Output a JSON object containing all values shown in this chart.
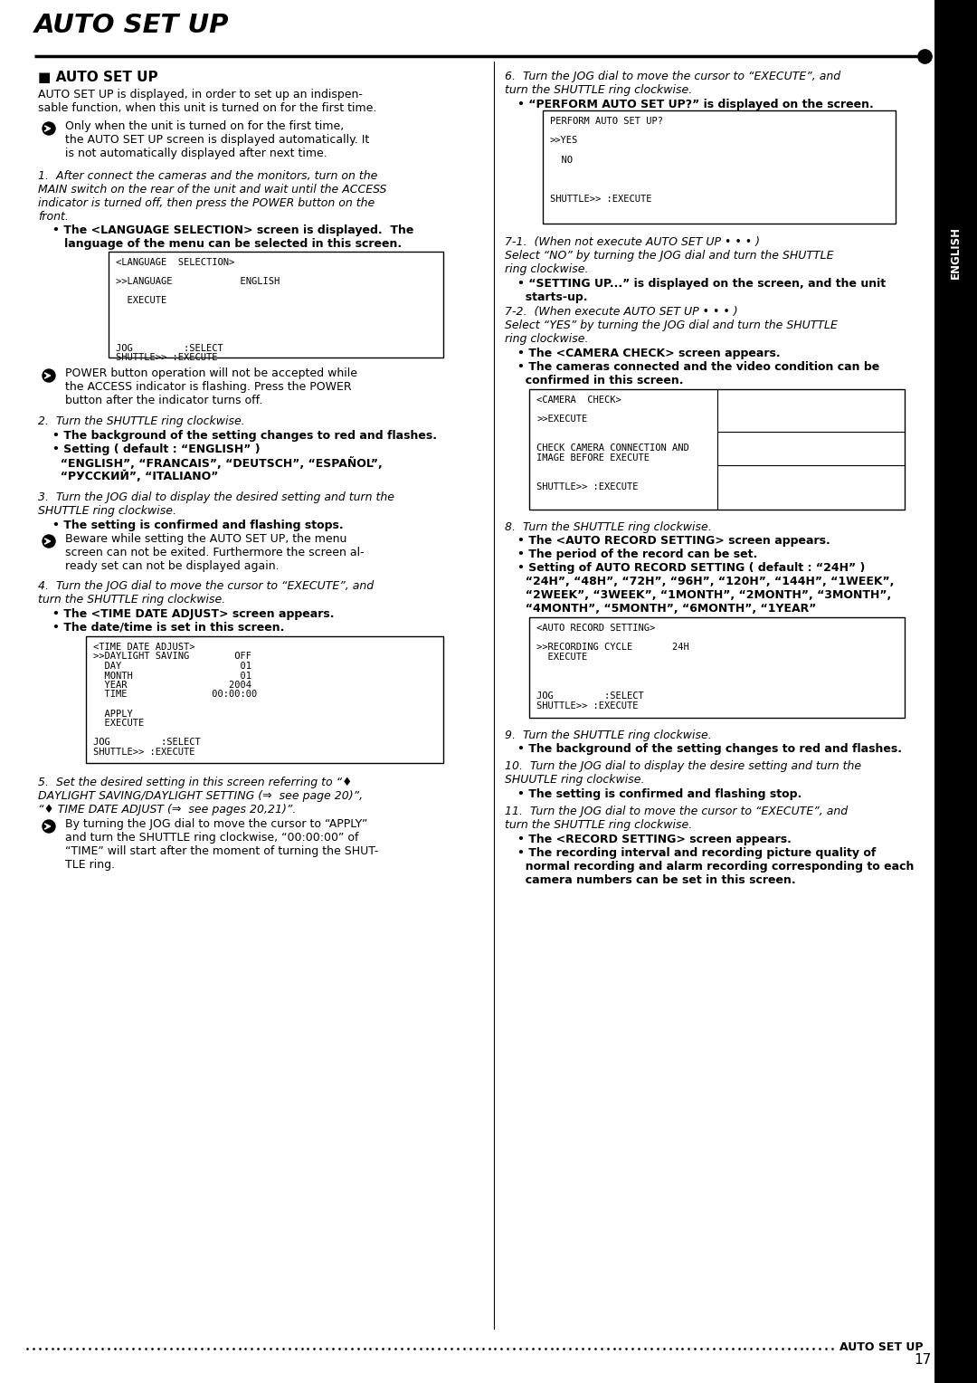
{
  "title": "AUTO SET UP",
  "page_number": "17",
  "footer_text": "AUTO SET UP",
  "bg_color": "#ffffff",
  "screens": {
    "lang_select": {
      "lines": [
        "<LANGUAGE  SELECTION>",
        "",
        ">>LANGUAGE            ENGLISH",
        "",
        "  EXECUTE",
        "",
        "",
        "",
        "",
        "JOG         :SELECT",
        "SHUTTLE>> :EXECUTE"
      ]
    },
    "time_date": {
      "lines": [
        "<TIME DATE ADJUST>",
        ">>DAYLIGHT SAVING        OFF",
        "  DAY                     01",
        "  MONTH                   01",
        "  YEAR                  2004",
        "  TIME               00:00:00",
        "",
        "  APPLY",
        "  EXECUTE",
        "",
        "JOG         :SELECT",
        "SHUTTLE>> :EXECUTE"
      ]
    },
    "perform_auto": {
      "lines": [
        "PERFORM AUTO SET UP?",
        "",
        ">>YES",
        "",
        "  NO",
        "",
        "",
        "",
        "SHUTTLE>> :EXECUTE"
      ]
    },
    "camera_check": {
      "lines": [
        "<CAMERA  CHECK>",
        "",
        ">>EXECUTE",
        "",
        "",
        "CHECK CAMERA CONNECTION AND",
        "IMAGE BEFORE EXECUTE",
        "",
        "",
        "SHUTTLE>> :EXECUTE"
      ],
      "has_grid": true,
      "grid_col": 0.5,
      "grid_rows": [
        0.35,
        0.65
      ]
    },
    "auto_record": {
      "lines": [
        "<AUTO RECORD SETTING>",
        "",
        ">>RECORDING CYCLE       24H",
        "  EXECUTE",
        "",
        "",
        "",
        "JOG         :SELECT",
        "SHUTTLE>> :EXECUTE"
      ]
    }
  }
}
